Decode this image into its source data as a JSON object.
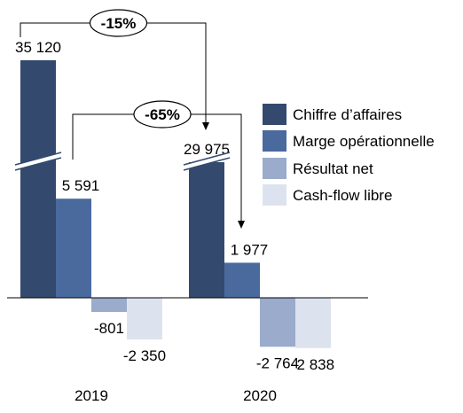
{
  "chart_data": {
    "type": "bar",
    "categories": [
      "2019",
      "2020"
    ],
    "series": [
      {
        "name": "Chiffre d’affaires",
        "color": "#334a6e",
        "values": [
          35120,
          29975
        ],
        "labels": [
          "35 120",
          "29 975"
        ],
        "broken_axis": true
      },
      {
        "name": "Marge opérationnelle",
        "color": "#4a6a9e",
        "values": [
          5591,
          1977
        ],
        "labels": [
          "5 591",
          "1 977"
        ]
      },
      {
        "name": "Résultat net",
        "color": "#9aabcb",
        "values": [
          -801,
          -2764
        ],
        "labels": [
          "-801",
          "-2 764"
        ]
      },
      {
        "name": "Cash-flow libre",
        "color": "#dde3ee",
        "values": [
          -2350,
          -2838
        ],
        "labels": [
          "-2 350",
          "-2 838"
        ]
      }
    ],
    "annotations": [
      {
        "text": "-15%",
        "from_series": 0,
        "to_series": 0
      },
      {
        "text": "-65%",
        "from_series": 1,
        "to_series": 1
      }
    ],
    "grid": false,
    "legend": "right"
  }
}
